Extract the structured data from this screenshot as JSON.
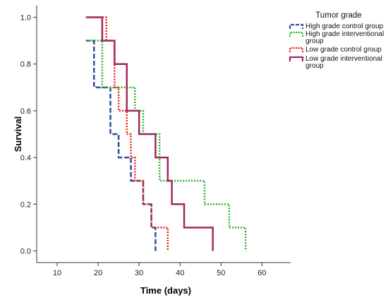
{
  "chart_data": {
    "type": "line",
    "subtype": "kaplan-meier step",
    "xlabel": "Time (days)",
    "ylabel": "Survival",
    "xlim": [
      5,
      67
    ],
    "ylim": [
      -0.05,
      1.05
    ],
    "xticks": [
      10,
      20,
      30,
      40,
      50,
      60
    ],
    "yticks": [
      0.0,
      0.2,
      0.4,
      0.6,
      0.8,
      1.0
    ],
    "xtick_labels": [
      "10",
      "20",
      "30",
      "40",
      "50",
      "60"
    ],
    "ytick_labels": [
      "0.0",
      "0.2",
      "0.4",
      "0.6",
      "0.8",
      "1.0"
    ],
    "grid": false,
    "legend": {
      "title": "Tumor grade",
      "placement": "top-right",
      "entries": [
        [
          "High grade control group"
        ],
        [
          "High grade interventional",
          "group"
        ],
        [
          "Low grade control group"
        ],
        [
          "Low grade interventional",
          "group"
        ]
      ]
    },
    "series": [
      {
        "name": "High grade control group",
        "color": "#2e4f9e",
        "line_style": "dashed",
        "x": [
          17,
          19,
          23,
          25,
          28,
          31,
          33,
          34
        ],
        "y": [
          0.9,
          0.7,
          0.5,
          0.4,
          0.3,
          0.2,
          0.1,
          0.0
        ]
      },
      {
        "name": "High grade interventional group",
        "color": "#2fb52f",
        "line_style": "dotted",
        "x": [
          17,
          20,
          21,
          26,
          29,
          31,
          35,
          46,
          52,
          56
        ],
        "y": [
          0.9,
          0.9,
          0.7,
          0.7,
          0.6,
          0.5,
          0.3,
          0.2,
          0.1,
          0.0
        ]
      },
      {
        "name": "Low grade control group",
        "color": "#e8231e",
        "line_style": "dotted",
        "x": [
          19,
          22,
          24,
          25,
          27,
          28,
          29,
          31,
          33,
          37
        ],
        "y": [
          1.0,
          0.9,
          0.7,
          0.6,
          0.5,
          0.4,
          0.3,
          0.2,
          0.1,
          0.0
        ]
      },
      {
        "name": "Low grade interventional group",
        "color": "#a3285f",
        "line_style": "solid",
        "x": [
          17,
          21,
          24,
          27,
          30,
          34,
          37,
          38,
          41,
          48
        ],
        "y": [
          1.0,
          0.9,
          0.8,
          0.6,
          0.5,
          0.4,
          0.3,
          0.2,
          0.1,
          0.0
        ]
      }
    ]
  }
}
